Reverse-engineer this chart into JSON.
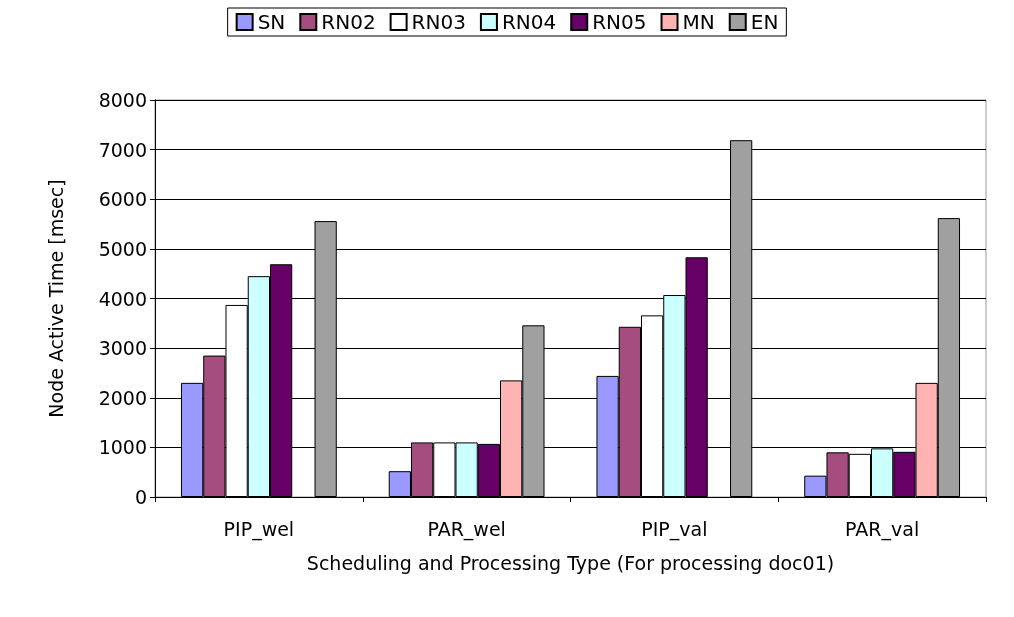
{
  "chart_data": {
    "type": "bar",
    "xlabel": "Scheduling and Processing Type (For processing doc01)",
    "ylabel": "Node Active Time [msec]",
    "categories": [
      "PIP_wel",
      "PAR_wel",
      "PIP_val",
      "PAR_val"
    ],
    "series": [
      {
        "name": "SN",
        "color": "#9999ff",
        "values": [
          2300,
          520,
          2440,
          430
        ]
      },
      {
        "name": "RN02",
        "color": "#a64d80",
        "values": [
          2850,
          1100,
          3430,
          900
        ]
      },
      {
        "name": "RN03",
        "color": "#ffffff",
        "values": [
          3870,
          1100,
          3660,
          870
        ]
      },
      {
        "name": "RN04",
        "color": "#ccffff",
        "values": [
          4450,
          1100,
          4070,
          980
        ]
      },
      {
        "name": "RN05",
        "color": "#660066",
        "values": [
          4690,
          1070,
          4830,
          910
        ]
      },
      {
        "name": "MN",
        "color": "#ffb3b3",
        "values": [
          null,
          2350,
          null,
          2300
        ]
      },
      {
        "name": "EN",
        "color": "#a0a0a0",
        "values": [
          5560,
          3460,
          7190,
          5620
        ]
      }
    ],
    "ylim": [
      0,
      8000
    ],
    "yticks": [
      0,
      1000,
      2000,
      3000,
      4000,
      5000,
      6000,
      7000,
      8000
    ],
    "grid": "y",
    "legend": "top"
  }
}
